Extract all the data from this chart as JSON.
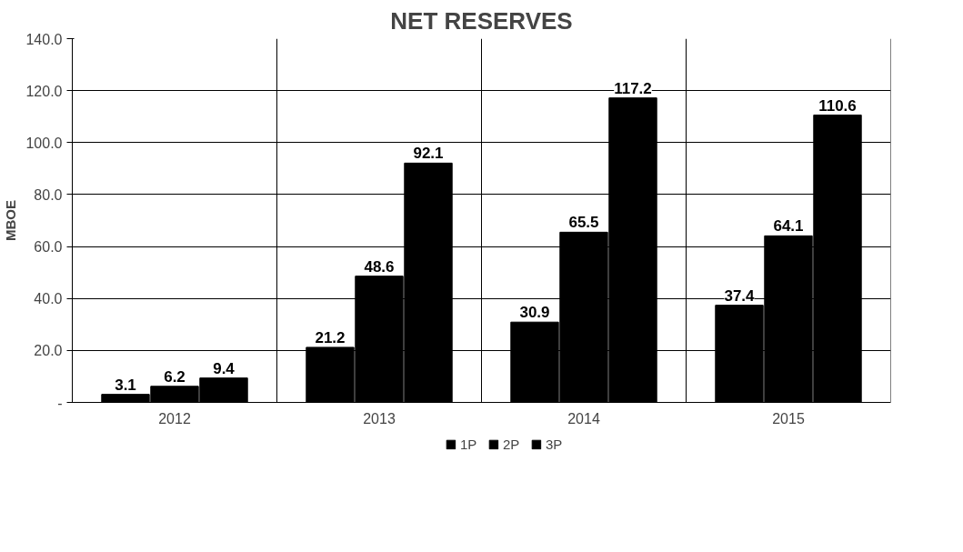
{
  "chart_data": {
    "type": "bar",
    "title": "NET RESERVES",
    "ylabel": "MBOE",
    "categories": [
      "2012",
      "2013",
      "2014",
      "2015"
    ],
    "series": [
      {
        "name": "1P",
        "color": "#000000",
        "values": [
          3.1,
          21.2,
          30.9,
          37.4
        ]
      },
      {
        "name": "2P",
        "color": "#000000",
        "values": [
          6.2,
          48.6,
          65.5,
          64.1
        ]
      },
      {
        "name": "3P",
        "color": "#000000",
        "values": [
          9.4,
          92.1,
          117.2,
          110.6
        ]
      }
    ],
    "ylim": [
      0,
      140
    ],
    "yticks": [
      {
        "value": 0,
        "label": "-"
      },
      {
        "value": 20,
        "label": "20.0"
      },
      {
        "value": 40,
        "label": "40.0"
      },
      {
        "value": 60,
        "label": "60.0"
      },
      {
        "value": 80,
        "label": "80.0"
      },
      {
        "value": 100,
        "label": "100.0"
      },
      {
        "value": 120,
        "label": "120.0"
      },
      {
        "value": 140,
        "label": "140.0"
      }
    ],
    "grid": true,
    "legend": "bottom",
    "data_labels": true
  }
}
